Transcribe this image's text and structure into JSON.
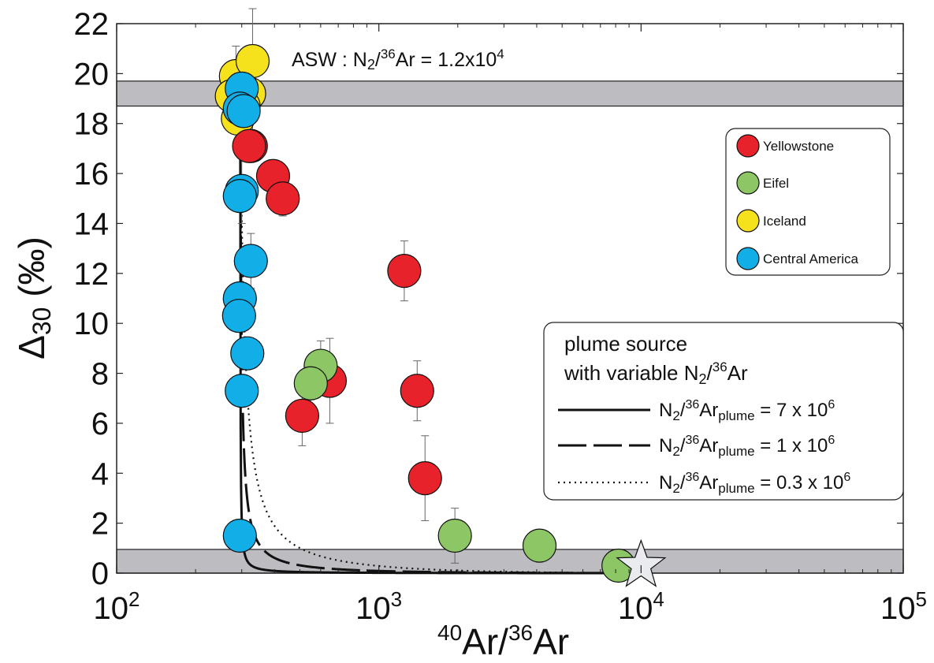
{
  "chart_data": {
    "type": "scatter",
    "xscale": "log",
    "xlim": [
      100,
      100000
    ],
    "ylim": [
      0,
      22
    ],
    "xlabel": {
      "sup1": "40",
      "mid": "Ar/",
      "sup2": "36",
      "end": "Ar"
    },
    "ylabel": {
      "prefix": "Δ",
      "sub": "30",
      "suffix": " (‰)"
    },
    "x_ticks": [
      {
        "value": 100,
        "base": "10",
        "exp": "2"
      },
      {
        "value": 1000,
        "base": "10",
        "exp": "3"
      },
      {
        "value": 10000,
        "base": "10",
        "exp": "4"
      },
      {
        "value": 100000,
        "base": "10",
        "exp": "5"
      }
    ],
    "y_ticks": [
      0,
      2,
      4,
      6,
      8,
      10,
      12,
      14,
      16,
      18,
      20,
      22
    ],
    "bands": [
      {
        "name": "ASW",
        "ymin": 18.7,
        "ymax": 19.7,
        "color": "#bdbdc1"
      },
      {
        "name": "bottom",
        "ymin": 0.0,
        "ymax": 0.95,
        "color": "#bdbdc1"
      }
    ],
    "annotation": {
      "prefix": "ASW : N",
      "sub": "2",
      "mid1": "/",
      "sup": "36",
      "mid2": "Ar = 1.2x10",
      "exp": "4",
      "x": 400,
      "y": 20.6
    },
    "series": [
      {
        "name": "Yellowstone",
        "color": "#e8222a",
        "points": [
          {
            "x": 325,
            "y": 17.1,
            "err": 0
          },
          {
            "x": 320,
            "y": 17.1,
            "err": 0
          },
          {
            "x": 395,
            "y": 15.9,
            "err": 0.6
          },
          {
            "x": 430,
            "y": 15.0,
            "err": 0.7
          },
          {
            "x": 1250,
            "y": 12.1,
            "err": 1.2
          },
          {
            "x": 650,
            "y": 7.7,
            "err": 1.7
          },
          {
            "x": 1400,
            "y": 7.3,
            "err": 1.2
          },
          {
            "x": 510,
            "y": 6.3,
            "err": 1.2
          },
          {
            "x": 1500,
            "y": 3.8,
            "err": 1.7
          }
        ]
      },
      {
        "name": "Eifel",
        "color": "#8dc665",
        "points": [
          {
            "x": 600,
            "y": 8.3,
            "err": 1.0
          },
          {
            "x": 550,
            "y": 7.6,
            "err": 1.0
          },
          {
            "x": 1950,
            "y": 1.5,
            "err": 1.1
          },
          {
            "x": 4100,
            "y": 1.1,
            "err": 0
          },
          {
            "x": 8200,
            "y": 0.3,
            "err": 0
          }
        ]
      },
      {
        "name": "Iceland",
        "color": "#f6e21c",
        "points": [
          {
            "x": 285,
            "y": 19.9,
            "err": 1.2
          },
          {
            "x": 330,
            "y": 20.5,
            "err": 3.5
          },
          {
            "x": 275,
            "y": 19.1,
            "err": 0
          },
          {
            "x": 320,
            "y": 19.2,
            "err": 0
          },
          {
            "x": 290,
            "y": 18.2,
            "err": 1.3
          },
          {
            "x": 305,
            "y": 18.7,
            "err": 0
          }
        ]
      },
      {
        "name": "Central America",
        "color": "#12aee8",
        "points": [
          {
            "x": 300,
            "y": 19.4,
            "err": 0
          },
          {
            "x": 295,
            "y": 18.6,
            "err": 0
          },
          {
            "x": 305,
            "y": 18.5,
            "err": 0
          },
          {
            "x": 300,
            "y": 15.3,
            "err": 1.3
          },
          {
            "x": 295,
            "y": 15.1,
            "err": 0
          },
          {
            "x": 325,
            "y": 12.5,
            "err": 1.1
          },
          {
            "x": 295,
            "y": 11.0,
            "err": 0
          },
          {
            "x": 293,
            "y": 10.3,
            "err": 0
          },
          {
            "x": 315,
            "y": 8.8,
            "err": 0
          },
          {
            "x": 300,
            "y": 7.3,
            "err": 0
          },
          {
            "x": 295,
            "y": 1.5,
            "err": 0
          }
        ]
      }
    ],
    "star": {
      "x": 10000,
      "y": 0.3,
      "color": "#e9ebef"
    },
    "curves": [
      {
        "n2ar_plume": 7000000,
        "dash": "",
        "label_prefix": "N",
        "label_sub1": "2",
        "label_mid": "/",
        "label_sup": "36",
        "label_ar": "Ar",
        "label_sub2": "plume",
        "label_value": " = 7 x 10",
        "label_exp": "6"
      },
      {
        "n2ar_plume": 1000000,
        "dash": "36,9",
        "label_prefix": "N",
        "label_sub1": "2",
        "label_mid": "/",
        "label_sup": "36",
        "label_ar": "Ar",
        "label_sub2": "plume",
        "label_value": " = 1 x 10",
        "label_exp": "6"
      },
      {
        "n2ar_plume": 300000,
        "dash": "2,5",
        "label_prefix": "N",
        "label_sub1": "2",
        "label_mid": "/",
        "label_sup": "36",
        "label_ar": "Ar",
        "label_sub2": "plume",
        "label_value": " = 0.3 x 10",
        "label_exp": "6"
      }
    ],
    "mixing_model": {
      "air_ratio": 296,
      "air_delta": 19.2,
      "plume_ratio": 10000,
      "plume_delta": 0.0,
      "air_n2ar": 12000
    },
    "legend_groups": {
      "title_line1": "plume source",
      "title_line2_prefix": "with variable N",
      "title_line2_sub": "2",
      "title_line2_mid": "/",
      "title_line2_sup": "36",
      "title_line2_end": "Ar"
    }
  }
}
